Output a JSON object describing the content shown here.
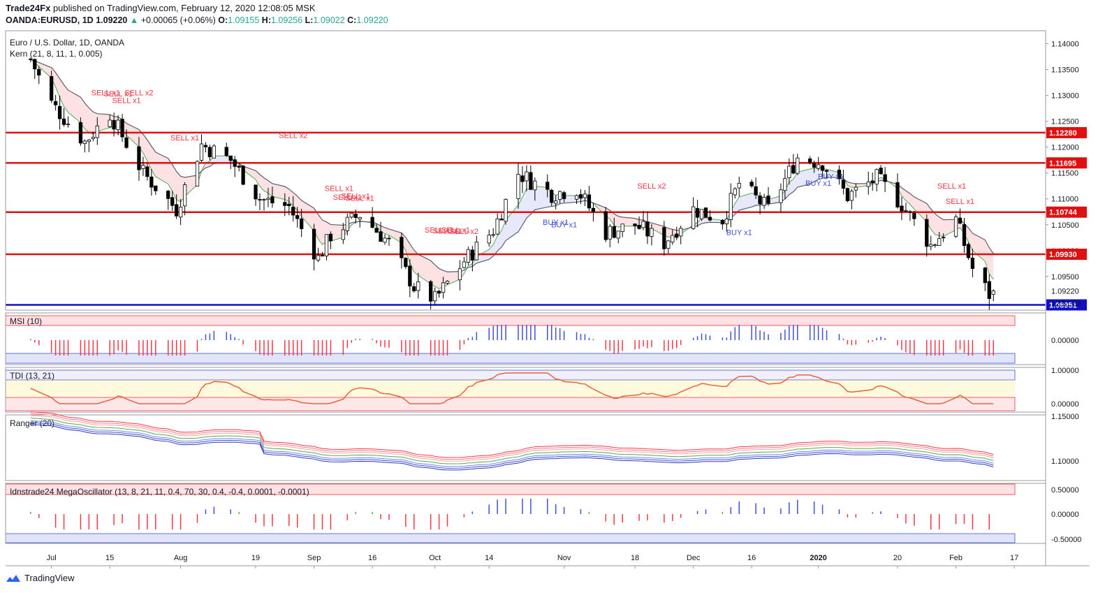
{
  "header": {
    "publisher": "Trade24Fx",
    "published_text": "published on TradingView.com, February 12, 2020 12:08:05 MSK",
    "symbol": "OANDA:EURUSD, 1D",
    "last": "1.09220",
    "change": "+0.00065 (+0.06%)",
    "o_label": "O:",
    "o": "1.09155",
    "h_label": "H:",
    "h": "1.09256",
    "l_label": "L:",
    "l": "1.09022",
    "c_label": "C:",
    "c": "1.09220"
  },
  "main_pane": {
    "instrument": "Euro / U.S. Dollar, 1D, OANDA",
    "indicator": "Kern (21, 8, 11, 1, 0.005)"
  },
  "price_axis": {
    "ticks": [
      "1.14000",
      "1.13500",
      "1.13000",
      "1.12500",
      "1.12000",
      "1.11500",
      "1.11000",
      "1.10500",
      "1.10000",
      "1.09500"
    ],
    "badges": [
      {
        "label": "1.12280",
        "value": 1.1228,
        "color": "#e01010"
      },
      {
        "label": "1.11695",
        "value": 1.11695,
        "color": "#e01010"
      },
      {
        "label": "1.10744",
        "value": 1.10744,
        "color": "#e01010"
      },
      {
        "label": "1.09930",
        "value": 1.0993,
        "color": "#e01010"
      },
      {
        "label": "1.08951",
        "value": 1.08951,
        "color": "#1010c8"
      }
    ],
    "last_price_label": "1.09220",
    "countdown": "12:51:58"
  },
  "time_axis": [
    "Jul",
    "15",
    "Aug",
    "19",
    "Sep",
    "16",
    "Oct",
    "14",
    "Nov",
    "18",
    "Dec",
    "16",
    "2020",
    "20",
    "Feb",
    "17"
  ],
  "signals": [
    {
      "text": "SELL x1",
      "type": "sell"
    },
    {
      "text": "SELL x1",
      "type": "sell"
    },
    {
      "text": "SELL x1",
      "type": "sell"
    },
    {
      "text": "SELL x2",
      "type": "sell"
    },
    {
      "text": "SELL x1",
      "type": "sell"
    },
    {
      "text": "SELL x2",
      "type": "sell"
    },
    {
      "text": "SELL x1",
      "type": "sell"
    },
    {
      "text": "SELL x1",
      "type": "sell"
    },
    {
      "text": "SELL x1",
      "type": "sell"
    },
    {
      "text": "SELL x1",
      "type": "sell"
    },
    {
      "text": "SELL x1",
      "type": "sell"
    },
    {
      "text": "SELL x1",
      "type": "sell"
    },
    {
      "text": "SELL x1",
      "type": "sell"
    },
    {
      "text": "SELL x2",
      "type": "sell"
    },
    {
      "text": "SELL x2",
      "type": "sell"
    },
    {
      "text": "SELL x1",
      "type": "sell"
    },
    {
      "text": "SELL x1",
      "type": "sell"
    },
    {
      "text": "BUY x1",
      "type": "buy"
    },
    {
      "text": "BUY x1",
      "type": "buy"
    },
    {
      "text": "BUY x1",
      "type": "buy"
    },
    {
      "text": "BUY x1",
      "type": "buy"
    },
    {
      "text": "BUY x1",
      "type": "buy"
    }
  ],
  "panes": {
    "msi": {
      "title": "MSI (10)",
      "ticks": [
        "0.00000"
      ]
    },
    "tdi": {
      "title": "TDI (13, 21)",
      "ticks": [
        "1.00000",
        "0.00000"
      ]
    },
    "ranger": {
      "title": "Ranger (20)",
      "ticks": [
        "1.15000",
        "1.10000"
      ]
    },
    "mega": {
      "title": "Idnstrade24 MegaOscillator (13, 8, 21, 11, 0.4, 70, 30, 0.4, -0.4, 0.0001, -0.0001)",
      "ticks": [
        "0.50000",
        "0.00000",
        "-0.50000"
      ]
    }
  },
  "colors": {
    "up": "#ffffff",
    "down": "#000000",
    "sell": "#f23645",
    "buy": "#3f51d8",
    "level": "#e01010",
    "support": "#1010c8"
  },
  "chart_data": {
    "type": "candlestick",
    "x": [
      "Jul 2019",
      "Aug 2019",
      "Sep 2019",
      "Oct 2019",
      "Nov 2019",
      "Dec 2019",
      "Jan 2020",
      "Feb 2020"
    ],
    "ylim": [
      1.0885,
      1.1425
    ],
    "close_path": [
      [
        "2019-06-26",
        1.137
      ],
      [
        "2019-07-01",
        1.1285
      ],
      [
        "2019-07-09",
        1.121
      ],
      [
        "2019-07-15",
        1.1265
      ],
      [
        "2019-07-23",
        1.115
      ],
      [
        "2019-07-31",
        1.108
      ],
      [
        "2019-08-06",
        1.1205
      ],
      [
        "2019-08-13",
        1.1175
      ],
      [
        "2019-08-20",
        1.11
      ],
      [
        "2019-08-27",
        1.1085
      ],
      [
        "2019-09-03",
        1.0985
      ],
      [
        "2019-09-06",
        1.103
      ],
      [
        "2019-09-13",
        1.107
      ],
      [
        "2019-09-20",
        1.1015
      ],
      [
        "2019-09-26",
        1.093
      ],
      [
        "2019-10-01",
        1.0905
      ],
      [
        "2019-10-08",
        1.098
      ],
      [
        "2019-10-15",
        1.104
      ],
      [
        "2019-10-21",
        1.115
      ],
      [
        "2019-10-29",
        1.111
      ],
      [
        "2019-11-04",
        1.112
      ],
      [
        "2019-11-11",
        1.1035
      ],
      [
        "2019-11-18",
        1.105
      ],
      [
        "2019-11-25",
        1.1015
      ],
      [
        "2019-12-02",
        1.108
      ],
      [
        "2019-12-09",
        1.106
      ],
      [
        "2019-12-13",
        1.113
      ],
      [
        "2019-12-20",
        1.108
      ],
      [
        "2019-12-27",
        1.118
      ],
      [
        "2020-01-02",
        1.117
      ],
      [
        "2020-01-08",
        1.1105
      ],
      [
        "2020-01-15",
        1.114
      ],
      [
        "2020-01-21",
        1.109
      ],
      [
        "2020-01-28",
        1.101
      ],
      [
        "2020-02-03",
        1.106
      ],
      [
        "2020-02-07",
        1.0965
      ],
      [
        "2020-02-11",
        1.0915
      ],
      [
        "2020-02-12",
        1.0922
      ]
    ],
    "horizontal_levels": [
      1.1228,
      1.11695,
      1.10744,
      1.0993,
      1.08951
    ]
  }
}
